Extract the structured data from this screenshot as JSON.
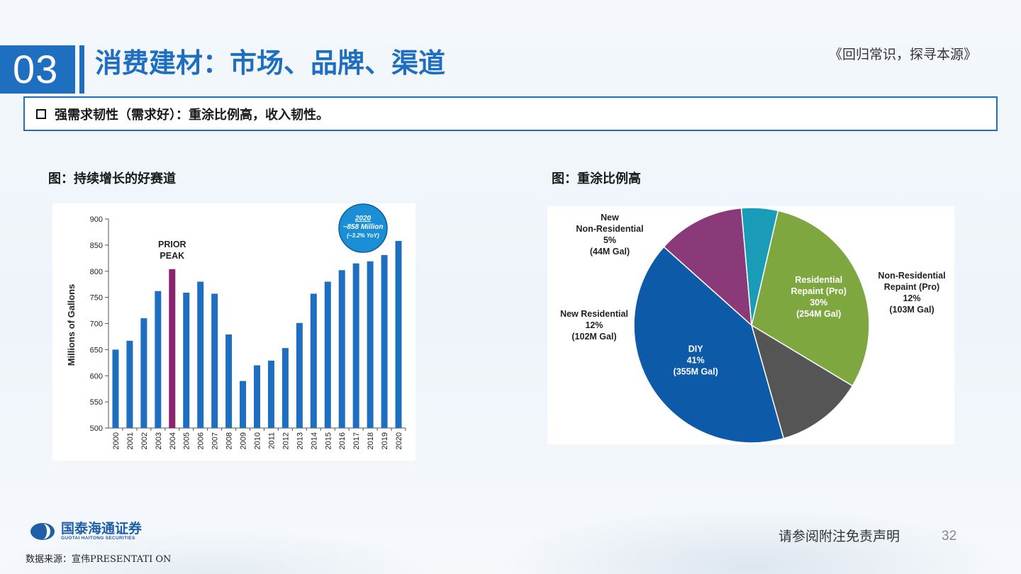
{
  "header": {
    "section_number": "03",
    "title": "消费建材：市场、品牌、渠道",
    "subtitle": "《回归常识，探寻本源》"
  },
  "key_point": "强需求韧性（需求好）：重涂比例高，收入韧性。",
  "left_caption": "图：持续增长的好赛道",
  "right_caption": "图：重涂比例高",
  "chart_data": [
    {
      "type": "bar",
      "categories": [
        "2000",
        "2001",
        "2002",
        "2003",
        "2004",
        "2005",
        "2006",
        "2007",
        "2008",
        "2009",
        "2010",
        "2011",
        "2012",
        "2013",
        "2014",
        "2015",
        "2016",
        "2017",
        "2018",
        "2019",
        "2020"
      ],
      "values": [
        650,
        667,
        710,
        762,
        804,
        759,
        780,
        757,
        679,
        590,
        620,
        629,
        653,
        701,
        757,
        780,
        802,
        815,
        819,
        831,
        858
      ],
      "highlight_index": 4,
      "ylabel": "Millions of Gallons",
      "ylim": [
        500,
        900
      ],
      "yticks": [
        500,
        550,
        600,
        650,
        700,
        750,
        800,
        850,
        900
      ],
      "annotation": [
        "PRIOR",
        "PEAK"
      ],
      "callout": [
        "2020",
        "~858 Million",
        "(~3.2% YoY)"
      ],
      "colors": {
        "bar": "#1f6fc0",
        "highlight": "#8b2370",
        "callout": "#1a8fd6"
      }
    },
    {
      "type": "pie",
      "slices": [
        {
          "name": "Residential Repaint (Pro)",
          "label": [
            "Residential",
            "Repaint (Pro)"
          ],
          "pct_label": "30%",
          "volume_label": "(254M Gal)",
          "value": 30,
          "color": "#7fa73f"
        },
        {
          "name": "Non-Residential Repaint (Pro)",
          "label": [
            "Non-Residential",
            "Repaint (Pro)"
          ],
          "pct_label": "12%",
          "volume_label": "(103M Gal)",
          "value": 12,
          "color": "#555555"
        },
        {
          "name": "DIY",
          "label": [
            "DIY"
          ],
          "pct_label": "41%",
          "volume_label": "(355M Gal)",
          "value": 41,
          "color": "#0c5aa8"
        },
        {
          "name": "New Residential",
          "label": [
            "New Residential"
          ],
          "pct_label": "12%",
          "volume_label": "(102M Gal)",
          "value": 12,
          "color": "#8a3a78"
        },
        {
          "name": "New Non-Residential",
          "label": [
            "New",
            "Non-Residential"
          ],
          "pct_label": "5%",
          "volume_label": "(44M Gal)",
          "value": 5,
          "color": "#1a9cb8"
        }
      ]
    }
  ],
  "footer": {
    "company_cn": "国泰海通证券",
    "company_en": "GUOTAI HAITONG SECURITIES",
    "source": "数据来源：宣伟PRESENTATI ON",
    "disclaimer": "请参阅附注免责声明",
    "page": "32"
  },
  "colors": {
    "accent": "#1f6fc0"
  }
}
